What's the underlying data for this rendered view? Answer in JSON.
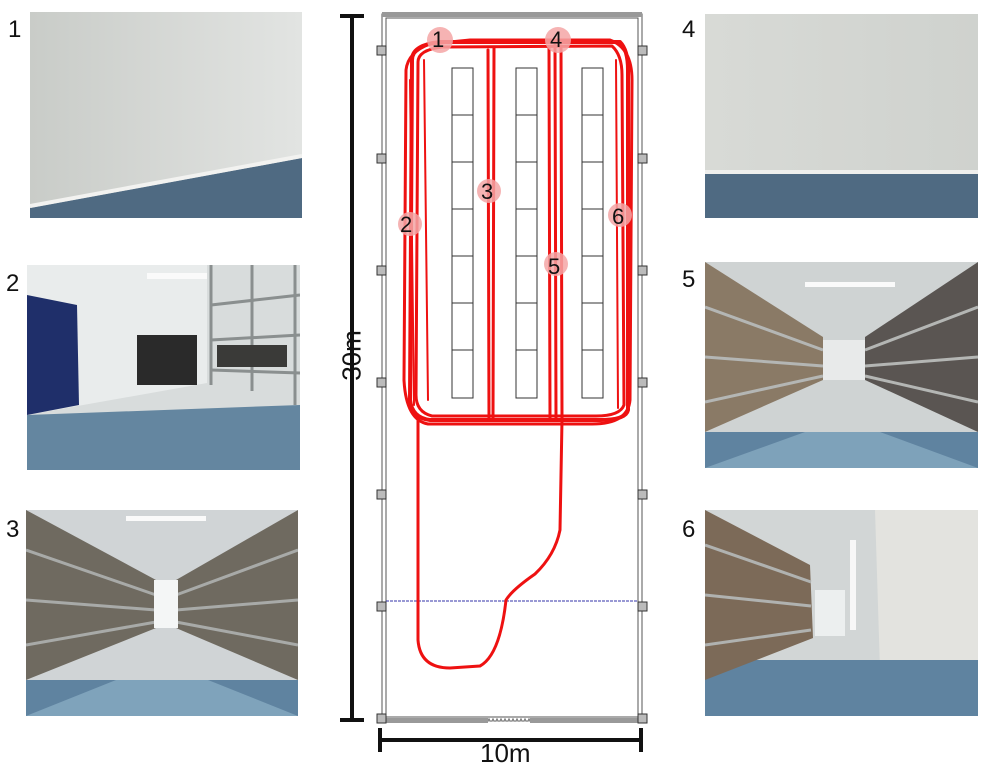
{
  "scale": {
    "height_label": "30m",
    "width_label": "10m"
  },
  "photos": [
    {
      "number": "1",
      "kind": "wall"
    },
    {
      "number": "2",
      "kind": "aisle-left-wall"
    },
    {
      "number": "3",
      "kind": "aisle-both-shelves"
    },
    {
      "number": "4",
      "kind": "wall"
    },
    {
      "number": "5",
      "kind": "aisle-both-shelves"
    },
    {
      "number": "6",
      "kind": "aisle-right-wall"
    }
  ],
  "map_markers": [
    "1",
    "2",
    "3",
    "4",
    "5",
    "6"
  ],
  "colors": {
    "trajectory": "#ee1111",
    "marker": "#f4a6a6",
    "divider": "#3333aa"
  }
}
